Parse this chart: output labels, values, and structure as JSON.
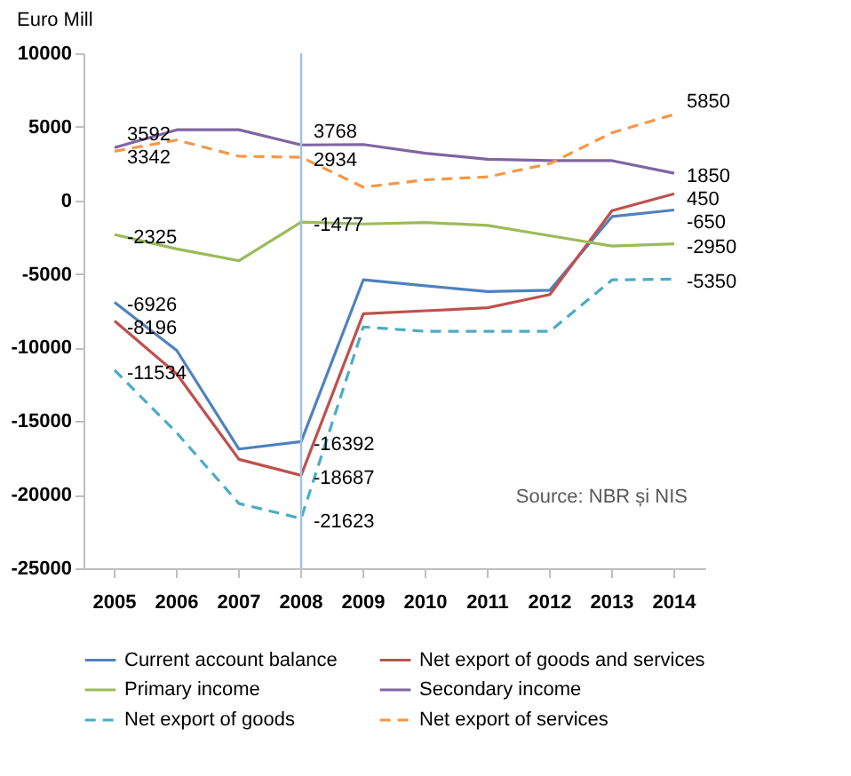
{
  "chart_data": {
    "type": "line",
    "ylabel": "Euro Mill",
    "categories": [
      "2005",
      "2006",
      "2007",
      "2008",
      "2009",
      "2010",
      "2011",
      "2012",
      "2013",
      "2014"
    ],
    "ylim": [
      -25000,
      10000
    ],
    "yticks": [
      -25000,
      -20000,
      -15000,
      -10000,
      -5000,
      0,
      5000,
      10000
    ],
    "grid": false,
    "legend": "bottom",
    "marker": "none",
    "series": [
      {
        "name": "Current account balance",
        "color": "#4f81bd",
        "line_style": "solid",
        "values": [
          -6926,
          -10200,
          -16900,
          -16392,
          -5400,
          -5800,
          -6200,
          -6100,
          -1100,
          -650
        ],
        "value_labels": [
          "-6926",
          null,
          null,
          "-16392",
          null,
          null,
          null,
          null,
          null,
          "-650"
        ]
      },
      {
        "name": "Net export of goods and services",
        "color": "#c0504d",
        "line_style": "solid",
        "values": [
          -8196,
          -11800,
          -17600,
          -18687,
          -7700,
          -7500,
          -7300,
          -6400,
          -700,
          450
        ],
        "value_labels": [
          "-8196",
          null,
          null,
          "-18687",
          null,
          null,
          null,
          null,
          null,
          "450"
        ]
      },
      {
        "name": "Primary income",
        "color": "#9bbb59",
        "line_style": "solid",
        "values": [
          -2325,
          -3300,
          -4100,
          -1477,
          -1600,
          -1500,
          -1700,
          -2400,
          -3100,
          -2950
        ],
        "value_labels": [
          "-2325",
          null,
          null,
          "-1477",
          null,
          null,
          null,
          null,
          null,
          "-2950"
        ]
      },
      {
        "name": "Secondary income",
        "color": "#8064a2",
        "line_style": "solid",
        "values": [
          3592,
          4800,
          4800,
          3768,
          3800,
          3200,
          2800,
          2700,
          2700,
          1850
        ],
        "value_labels": [
          "3592",
          null,
          null,
          "3768",
          null,
          null,
          null,
          null,
          null,
          "1850"
        ]
      },
      {
        "name": "Net export of goods",
        "color": "#4bacc6",
        "line_style": "dashed",
        "values": [
          -11534,
          -15800,
          -20600,
          -21623,
          -8600,
          -8900,
          -8900,
          -8900,
          -5400,
          -5350
        ],
        "value_labels": [
          "-11534",
          null,
          null,
          "-21623",
          null,
          null,
          null,
          null,
          null,
          "-5350"
        ]
      },
      {
        "name": "Net export of services",
        "color": "#f79646",
        "line_style": "dashed",
        "values": [
          3342,
          4100,
          3000,
          2934,
          900,
          1400,
          1600,
          2500,
          4600,
          5850
        ],
        "value_labels": [
          "3342",
          null,
          null,
          "2934",
          null,
          null,
          null,
          null,
          null,
          "5850"
        ]
      }
    ],
    "ref_lines": [
      {
        "axis": "x",
        "value": "2008",
        "color": "#9dc3e6"
      }
    ],
    "annotations": [
      "Source: NBR și NIS"
    ]
  }
}
